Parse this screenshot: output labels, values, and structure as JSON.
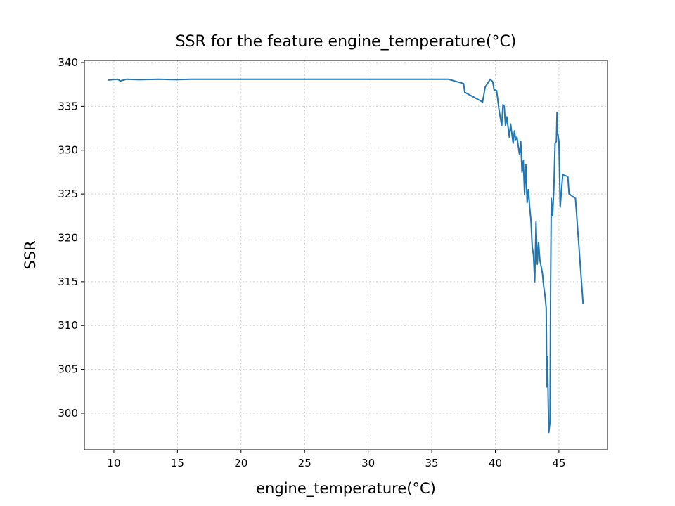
{
  "chart_data": {
    "type": "line",
    "title": "SSR for the feature engine_temperature(°C)",
    "xlabel": "engine_temperature(°C)",
    "ylabel": "SSR",
    "grid": true,
    "xlim": [
      7.68,
      48.82
    ],
    "ylim": [
      295.83,
      340.24
    ],
    "xticks": [
      10,
      15,
      20,
      25,
      30,
      35,
      40,
      45
    ],
    "yticks": [
      300,
      305,
      310,
      315,
      320,
      325,
      330,
      335,
      340
    ],
    "series": [
      {
        "color": "#1f77b4",
        "x": [
          9.5,
          10.3,
          10.5,
          11,
          12,
          13.5,
          15,
          16,
          20,
          25,
          30,
          36.3,
          37.5,
          37.6,
          39.0,
          39.2,
          39.6,
          39.8,
          39.9,
          40.1,
          40.3,
          40.5,
          40.6,
          40.7,
          40.8,
          40.9,
          41.1,
          41.2,
          41.4,
          41.5,
          41.6,
          41.7,
          41.9,
          42.0,
          42.1,
          42.2,
          42.3,
          42.4,
          42.5,
          42.6,
          42.7,
          42.8,
          42.9,
          43.0,
          43.1,
          43.2,
          43.3,
          43.4,
          43.5,
          43.7,
          43.8,
          43.9,
          44.0,
          44.05,
          44.1,
          44.15,
          44.2,
          44.3,
          44.35,
          44.4,
          44.5,
          44.6,
          44.7,
          44.8,
          44.85,
          44.9,
          45.0,
          45.1,
          45.3,
          45.7,
          45.8,
          46.3,
          46.9
        ],
        "values": [
          338.0,
          338.1,
          337.9,
          338.1,
          338.05,
          338.1,
          338.05,
          338.1,
          338.1,
          338.1,
          338.1,
          338.1,
          337.6,
          336.6,
          335.5,
          337.2,
          338.1,
          337.8,
          336.9,
          336.8,
          334.5,
          332.8,
          335.2,
          335.0,
          332.8,
          333.8,
          331.5,
          333.0,
          330.8,
          332.2,
          331.2,
          331.5,
          329.5,
          331.0,
          327.5,
          328.8,
          325.0,
          328.4,
          324.0,
          325.5,
          323.5,
          322.0,
          319.0,
          318.0,
          315.0,
          321.8,
          317.0,
          319.5,
          317.5,
          316.0,
          314.5,
          313.5,
          312.0,
          303.0,
          306.5,
          302.0,
          297.8,
          299.0,
          315.0,
          324.5,
          322.5,
          325.5,
          330.8,
          331.0,
          334.3,
          332.0,
          331.0,
          323.5,
          327.2,
          327.0,
          325.0,
          324.5,
          312.5
        ]
      }
    ]
  }
}
